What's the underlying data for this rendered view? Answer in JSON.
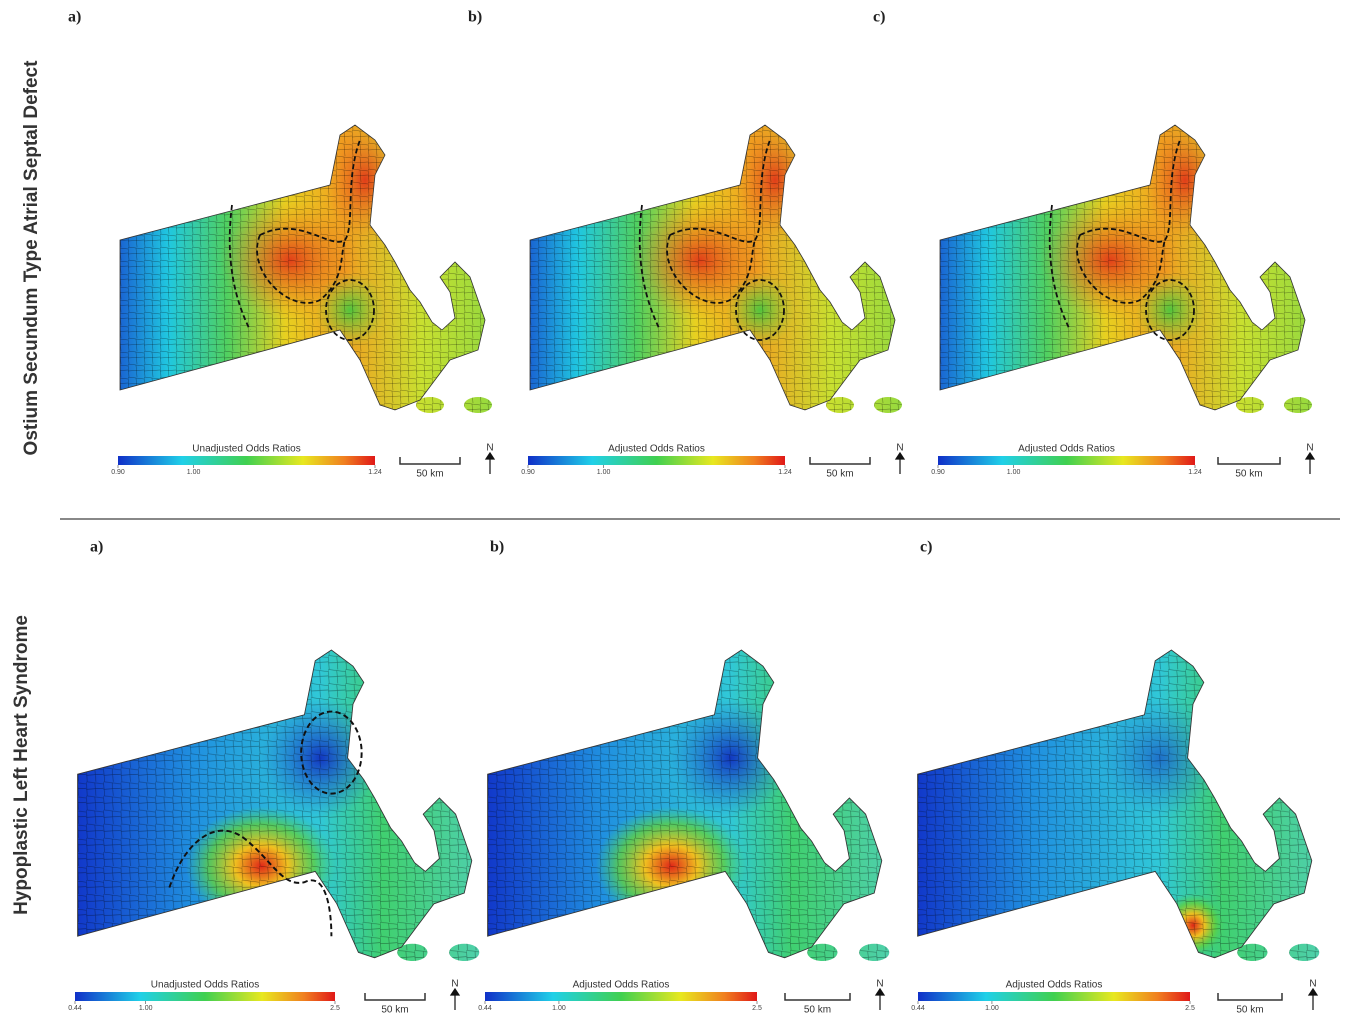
{
  "rows": [
    {
      "title": "Ostium Secundum Type Atrial Septal Defect",
      "panels": [
        {
          "letter": "a)",
          "legend_title": "Unadjusted Odds Ratios"
        },
        {
          "letter": "b)",
          "legend_title": "Adjusted Odds Ratios"
        },
        {
          "letter": "c)",
          "legend_title": "Adjusted Odds Ratios"
        }
      ],
      "colorbar": {
        "range": [
          0.9,
          1.24
        ],
        "ticks": [
          {
            "value": 0.9,
            "label": "0.90"
          },
          {
            "value": 1.0,
            "label": "1.00"
          },
          {
            "value": 1.24,
            "label": "1.24"
          }
        ]
      }
    },
    {
      "title": "Hypoplastic Left Heart Syndrome",
      "panels": [
        {
          "letter": "a)",
          "legend_title": "Unadjusted Odds Ratios"
        },
        {
          "letter": "b)",
          "legend_title": "Adjusted Odds Ratios"
        },
        {
          "letter": "c)",
          "legend_title": "Adjusted Odds Ratios"
        }
      ],
      "colorbar": {
        "range": [
          0.44,
          2.5
        ],
        "ticks": [
          {
            "value": 0.44,
            "label": "0.44"
          },
          {
            "value": 1.0,
            "label": "1.00"
          },
          2.5
        ]
      }
    }
  ],
  "scale_bar": "50 km",
  "north": "N"
}
